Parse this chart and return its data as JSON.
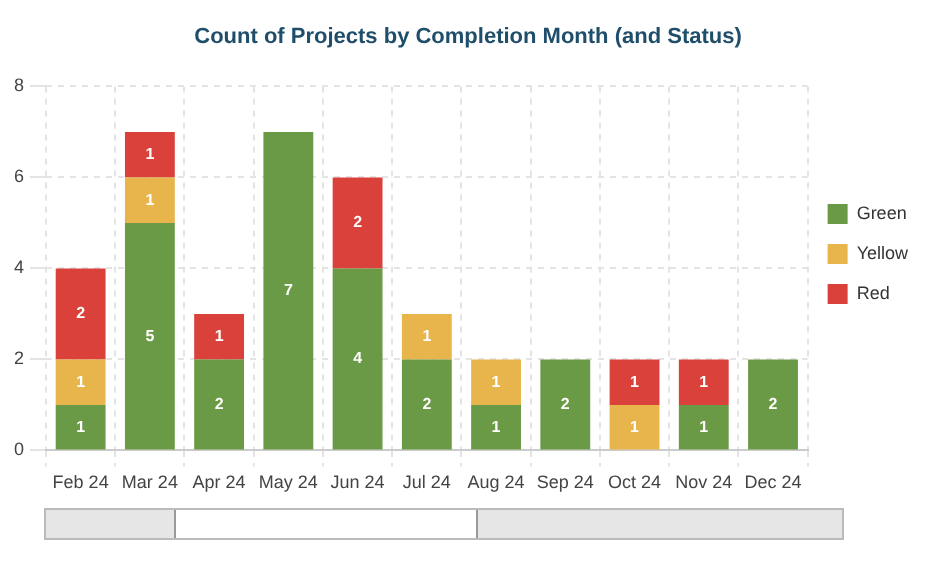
{
  "chart_data": {
    "type": "bar",
    "title": "Count of Projects by Completion Month (and Status)",
    "categories": [
      "Feb 24",
      "Mar 24",
      "Apr 24",
      "May 24",
      "Jun 24",
      "Jul 24",
      "Aug 24",
      "Sep 24",
      "Oct 24",
      "Nov 24",
      "Dec 24"
    ],
    "series": [
      {
        "name": "Green",
        "color": "#6a9a45",
        "values": [
          1,
          5,
          2,
          7,
          4,
          2,
          1,
          2,
          null,
          1,
          2
        ]
      },
      {
        "name": "Yellow",
        "color": "#e8b54d",
        "values": [
          1,
          1,
          null,
          null,
          null,
          1,
          1,
          null,
          1,
          null,
          null
        ]
      },
      {
        "name": "Red",
        "color": "#d9413a",
        "values": [
          2,
          1,
          1,
          null,
          2,
          null,
          null,
          null,
          1,
          1,
          null
        ]
      }
    ],
    "stacked": true,
    "ylim": [
      0,
      8
    ],
    "yticks": [
      0,
      2,
      4,
      6,
      8
    ],
    "grid": true,
    "legend": "right",
    "data_labels": true
  }
}
